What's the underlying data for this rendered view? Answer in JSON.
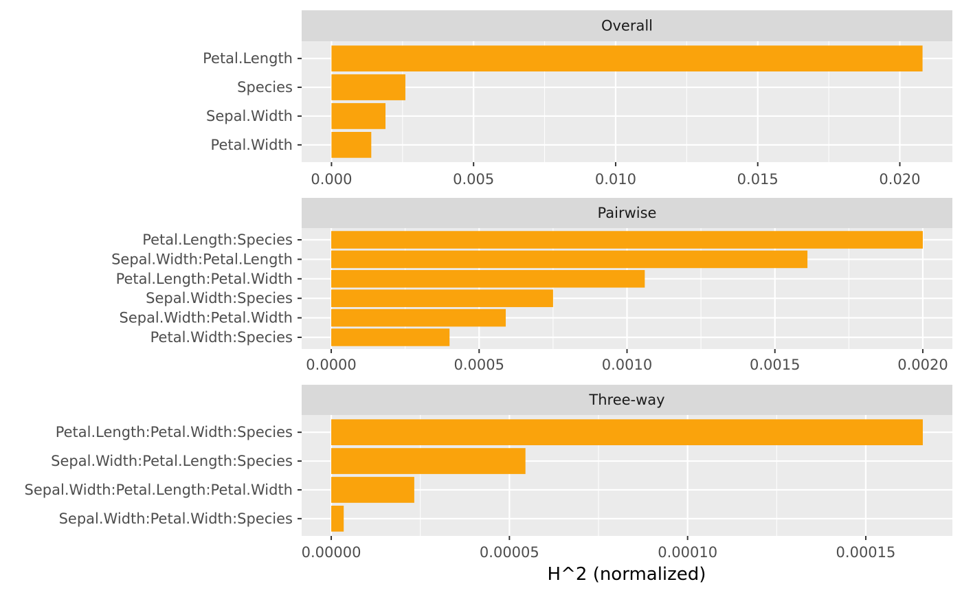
{
  "chart_data": {
    "type": "bar",
    "orientation": "horizontal",
    "xlabel": "H^2 (normalized)",
    "bar_color": "#FAA30C",
    "panel_background": "#EBEBEB",
    "strip_background": "#D9D9D9",
    "grid": true,
    "panels": [
      {
        "title": "Overall",
        "categories": [
          "Petal.Length",
          "Species",
          "Sepal.Width",
          "Petal.Width"
        ],
        "values": [
          0.0208,
          0.0026,
          0.0019,
          0.0014
        ],
        "xlim": [
          -0.00105,
          0.02185
        ],
        "ticks": [
          0,
          0.005,
          0.01,
          0.015,
          0.02
        ],
        "tick_labels": [
          "0.000",
          "0.005",
          "0.010",
          "0.015",
          "0.020"
        ]
      },
      {
        "title": "Pairwise",
        "categories": [
          "Petal.Length:Species",
          "Sepal.Width:Petal.Length",
          "Petal.Length:Petal.Width",
          "Sepal.Width:Species",
          "Sepal.Width:Petal.Width",
          "Petal.Width:Species"
        ],
        "values": [
          0.002,
          0.00161,
          0.00106,
          0.00075,
          0.00059,
          0.0004
        ],
        "xlim": [
          -0.0001,
          0.0021
        ],
        "ticks": [
          0,
          0.0005,
          0.001,
          0.0015,
          0.002
        ],
        "tick_labels": [
          "0.0000",
          "0.0005",
          "0.0010",
          "0.0015",
          "0.0020"
        ]
      },
      {
        "title": "Three-way",
        "categories": [
          "Petal.Length:Petal.Width:Species",
          "Sepal.Width:Petal.Length:Species",
          "Sepal.Width:Petal.Length:Petal.Width",
          "Sepal.Width:Petal.Width:Species"
        ],
        "values": [
          0.000166,
          5.45e-05,
          2.33e-05,
          3.5e-06
        ],
        "xlim": [
          -8.3e-06,
          0.0001743
        ],
        "ticks": [
          0,
          5e-05,
          0.0001,
          0.00015
        ],
        "tick_labels": [
          "0.00000",
          "0.00005",
          "0.00010",
          "0.00015"
        ]
      }
    ]
  }
}
